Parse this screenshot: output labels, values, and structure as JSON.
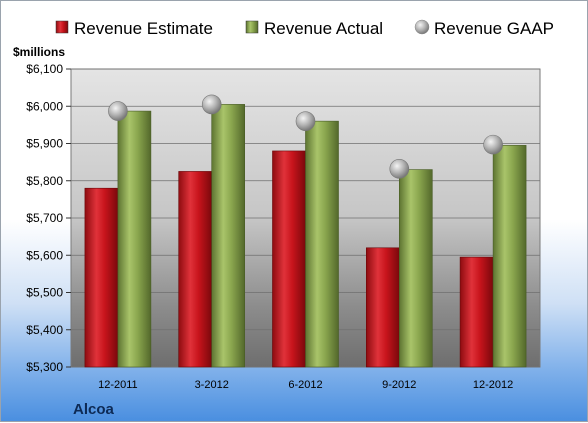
{
  "chart_data": {
    "type": "bar",
    "title": "",
    "ylabel": "$millions",
    "xlabel": "",
    "company": "Alcoa",
    "categories": [
      "12-2011",
      "3-2012",
      "6-2012",
      "9-2012",
      "12-2012"
    ],
    "series": [
      {
        "name": "Revenue Estimate",
        "kind": "bar",
        "color": "#c8141c",
        "values": [
          5780,
          5825,
          5880,
          5620,
          5595
        ]
      },
      {
        "name": "Revenue Actual",
        "kind": "bar",
        "color": "#8aa64e",
        "values": [
          5987,
          6005,
          5960,
          5830,
          5895
        ]
      },
      {
        "name": "Revenue GAAP",
        "kind": "marker",
        "color": "#9c9c9c",
        "values": [
          5987,
          6005,
          5960,
          5832,
          5897
        ]
      }
    ],
    "ylim": [
      5300,
      6100
    ],
    "yticks": [
      5300,
      5400,
      5500,
      5600,
      5700,
      5800,
      5900,
      6000,
      6100
    ],
    "ytick_labels": [
      "$5,300",
      "$5,400",
      "$5,500",
      "$5,600",
      "$5,700",
      "$5,800",
      "$5,900",
      "$6,000",
      "$6,100"
    ],
    "grid": true,
    "legend_position": "top"
  }
}
